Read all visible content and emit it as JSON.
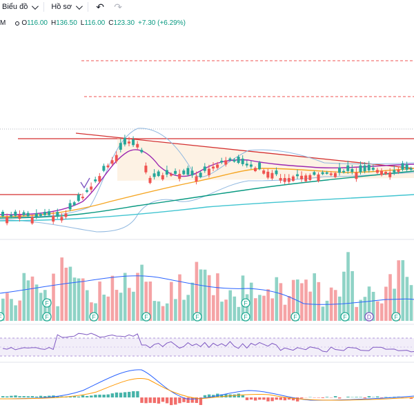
{
  "toolbar": {
    "chart_menu": "Biểu đồ",
    "profile_menu": "Hồ sơ",
    "undo_icon": "undo-icon",
    "redo_icon": "redo-icon"
  },
  "legend": {
    "interval_fragment": "M",
    "open_label": "O",
    "open": "116.00",
    "high_label": "H",
    "high": "136.50",
    "low_label": "L",
    "low": "116.00",
    "close_label": "C",
    "close": "123.30",
    "change": "+7.30 (+6.29%)"
  },
  "colors": {
    "up": "#26a69a",
    "down": "#ef5350",
    "volume_up": "#8fd3c6",
    "volume_down": "#f5a3a5",
    "trendline": "#d32f2f",
    "bollinger": "#90b8e0",
    "ma_purple": "#9c27b0",
    "ma_orange": "#f5a623",
    "ma_green": "#089981",
    "ma_cyan": "#40c4d0",
    "rsi": "#7e57c2",
    "macd_blue": "#2962ff",
    "macd_orange": "#ff9800"
  },
  "markers": {
    "financial_letter": "F",
    "dividend_letter": "D"
  }
}
